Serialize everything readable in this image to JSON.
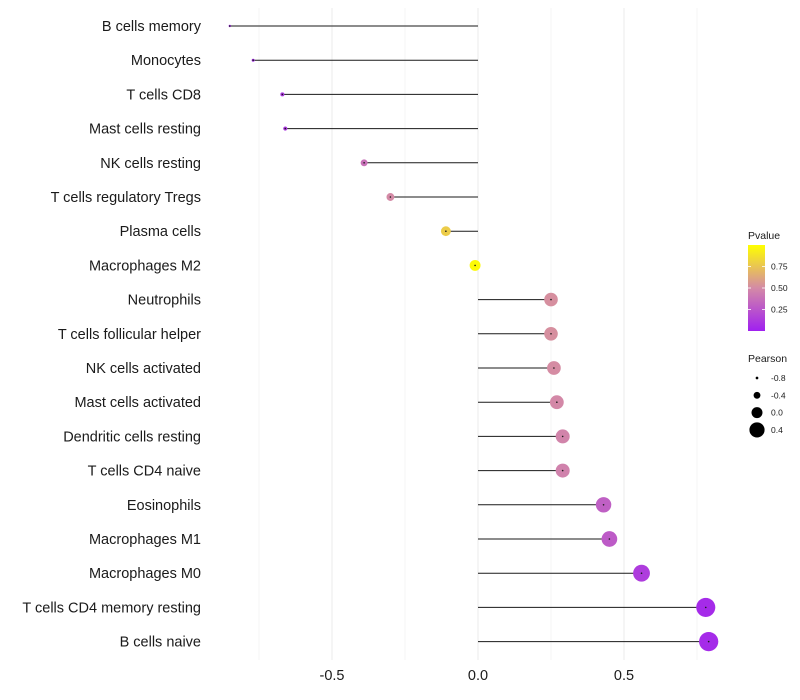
{
  "chart_data": {
    "type": "lollipop",
    "categories": [
      "B cells memory",
      "Monocytes",
      "T cells CD8",
      "Mast cells resting",
      "NK cells resting",
      "T cells regulatory  Tregs",
      "Plasma cells",
      "Macrophages M2",
      "Neutrophils",
      "T cells follicular helper",
      "NK cells activated",
      "Mast cells activated",
      "Dendritic cells resting",
      "T cells CD4 naive",
      "Eosinophils",
      "Macrophages M1",
      "Macrophages M0",
      "T cells CD4 memory resting",
      "B cells naive"
    ],
    "values": [
      -0.85,
      -0.77,
      -0.67,
      -0.66,
      -0.39,
      -0.3,
      -0.11,
      -0.01,
      0.25,
      0.25,
      0.26,
      0.27,
      0.29,
      0.29,
      0.43,
      0.45,
      0.56,
      0.78,
      0.79
    ],
    "pvalues": [
      0.03,
      0.05,
      0.1,
      0.11,
      0.38,
      0.5,
      0.78,
      0.98,
      0.52,
      0.52,
      0.51,
      0.49,
      0.47,
      0.46,
      0.3,
      0.28,
      0.13,
      0.05,
      0.05
    ],
    "xlim": [
      -0.95,
      0.85
    ],
    "xticks": [
      -0.5,
      0.0,
      0.5
    ],
    "xtick_labels": [
      "-0.5",
      "0.0",
      "0.5"
    ],
    "grid": true,
    "title": "",
    "xlabel": "",
    "ylabel": "",
    "legend_color": {
      "title": "Pvalue",
      "ticks": [
        0.75,
        0.5,
        0.25
      ],
      "tick_labels": [
        "0.75",
        "0.50",
        "0.25"
      ],
      "range": [
        0.0,
        1.0
      ],
      "low_color": "#a020f0",
      "mid_color": "#d48aa6",
      "high_color": "#ffff00",
      "position": "right"
    },
    "legend_size": {
      "title": "Pearson",
      "values": [
        -0.8,
        -0.4,
        0.0,
        0.4
      ],
      "labels": [
        "-0.8",
        "-0.4",
        "0.0",
        "0.4"
      ],
      "position": "right"
    }
  }
}
